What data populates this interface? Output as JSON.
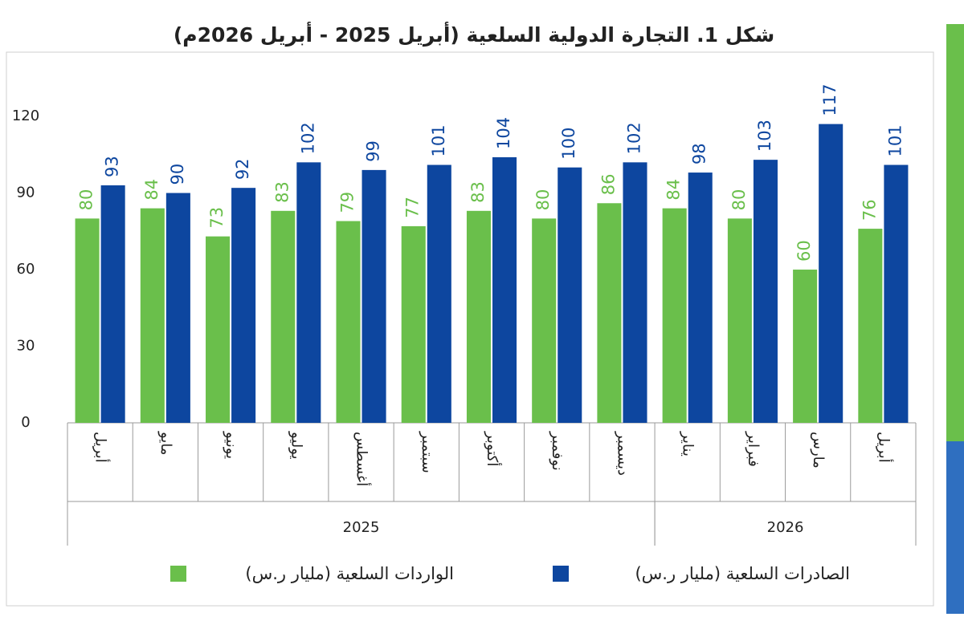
{
  "chart_data": {
    "type": "bar",
    "title": "شكل 1. التجارة الدولية السلعية (أبريل 2025 - أبريل 2026م)",
    "categories": [
      "أبريل",
      "مايو",
      "يونيو",
      "يوليو",
      "أغسطس",
      "سبتمبر",
      "أكتوبر",
      "نوفمبر",
      "ديسمبر",
      "يناير",
      "فبراير",
      "مارس",
      "أبريل"
    ],
    "groups": [
      {
        "label": "2025",
        "span": 9
      },
      {
        "label": "2026",
        "span": 4
      }
    ],
    "series": [
      {
        "name": "الواردات السلعية (مليار ر.س)",
        "color": "#6abf4b",
        "values": [
          80,
          84,
          73,
          83,
          79,
          77,
          83,
          80,
          86,
          84,
          80,
          60,
          76
        ]
      },
      {
        "name": "الصادرات السلعية (مليار ر.س)",
        "color": "#0d469f",
        "values": [
          93,
          90,
          92,
          102,
          99,
          101,
          104,
          100,
          102,
          98,
          103,
          117,
          101
        ]
      }
    ],
    "ylim": [
      0,
      140
    ],
    "yticks": [
      0,
      30,
      60,
      90,
      120
    ],
    "grid": false
  }
}
